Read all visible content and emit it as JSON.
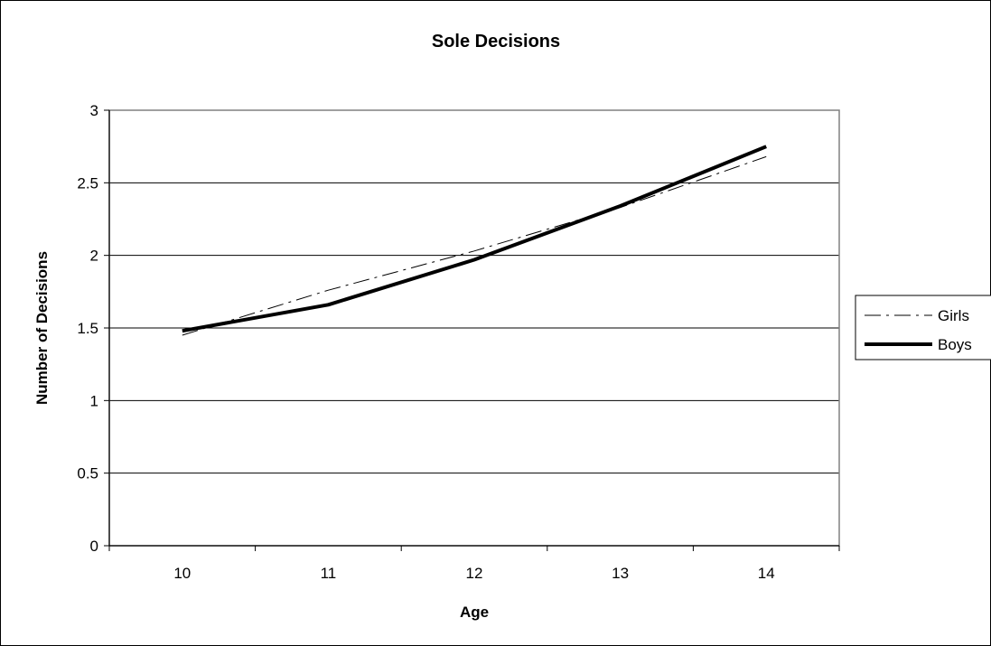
{
  "chart_data": {
    "type": "line",
    "title": "Sole Decisions",
    "xlabel": "Age",
    "ylabel": "Number of Decisions",
    "categories": [
      "10",
      "11",
      "12",
      "13",
      "14"
    ],
    "ylim": [
      0,
      3
    ],
    "yticks": [
      "0",
      "0.5",
      "1",
      "1.5",
      "2",
      "2.5",
      "3"
    ],
    "grid": true,
    "legend_position": "right",
    "series": [
      {
        "name": "Girls",
        "values": [
          1.45,
          1.76,
          2.03,
          2.33,
          2.68
        ],
        "color": "#000000",
        "style": "dash-dot"
      },
      {
        "name": "Boys",
        "values": [
          1.48,
          1.66,
          1.97,
          2.34,
          2.75
        ],
        "color": "#000000",
        "style": "solid-thick"
      }
    ]
  }
}
